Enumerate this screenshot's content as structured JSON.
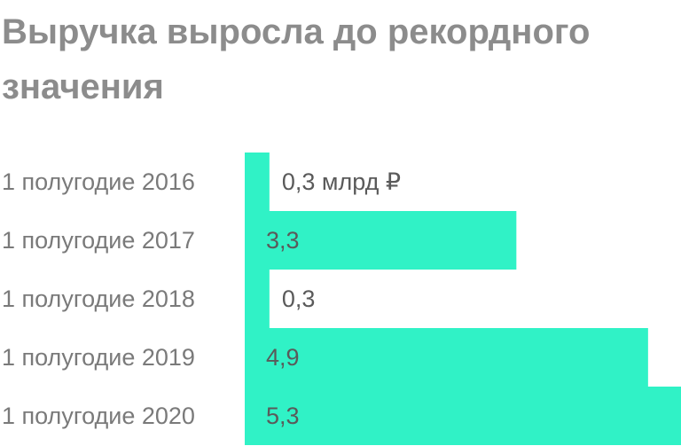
{
  "chart_data": {
    "type": "bar",
    "orientation": "horizontal",
    "title": "Выручка выросла до рекордного значения",
    "categories": [
      "1 полугодие 2016",
      "1 полугодие 2017",
      "1 полугодие 2018",
      "1 полугодие 2019",
      "1 полугодие 2020"
    ],
    "values": [
      0.3,
      3.3,
      0.3,
      4.9,
      5.3
    ],
    "value_labels": [
      "0,3 млрд ₽",
      "3,3",
      "0,3",
      "4,9",
      "5,3"
    ],
    "color": "#30f2c6"
  }
}
